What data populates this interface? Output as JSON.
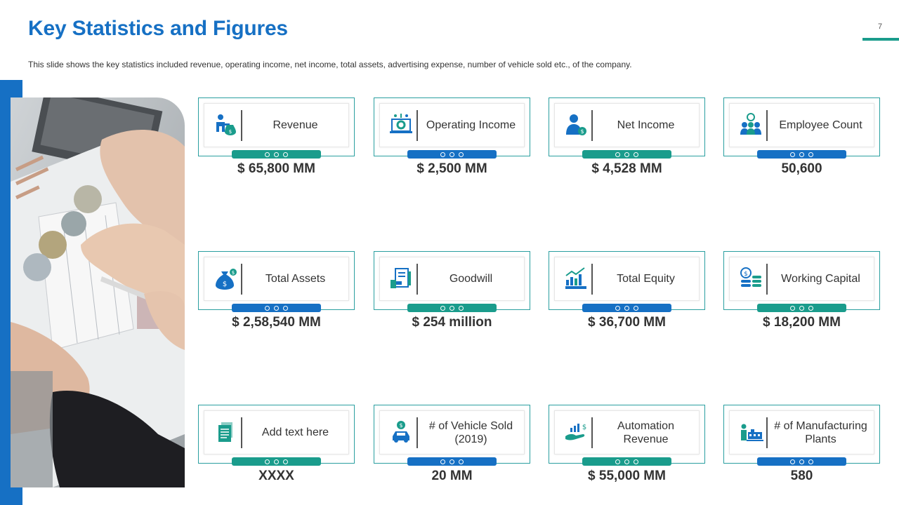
{
  "header": {
    "title": "Key Statistics and Figures",
    "page_number": "7",
    "subtitle": "This slide shows the key statistics included revenue,  operating income, net income, total assets, advertising  expense, number of vehicle  sold etc., of the company."
  },
  "colors": {
    "blue": "#1670c4",
    "teal": "#1a9c8c"
  },
  "cards": [
    {
      "label": "Revenue",
      "value": "$ 65,800 MM",
      "icon": "businessman-money-icon",
      "tab": "teal"
    },
    {
      "label": "Operating Income",
      "value": "$ 2,500 MM",
      "icon": "laptop-gear-icon",
      "tab": "blue"
    },
    {
      "label": "Net Income",
      "value": "$ 4,528 MM",
      "icon": "person-dollar-icon",
      "tab": "teal"
    },
    {
      "label": "Employee Count",
      "value": "50,600",
      "icon": "team-icon",
      "tab": "blue"
    },
    {
      "label": "Total Assets",
      "value": "$ 2,58,540 MM",
      "icon": "money-bag-icon",
      "tab": "blue"
    },
    {
      "label": "Goodwill",
      "value": "$ 254 million",
      "icon": "document-hand-icon",
      "tab": "teal"
    },
    {
      "label": "Total Equity",
      "value": "$ 36,700 MM",
      "icon": "growth-chart-icon",
      "tab": "blue"
    },
    {
      "label": "Working Capital",
      "value": "$ 18,200 MM",
      "icon": "coin-stack-icon",
      "tab": "teal"
    },
    {
      "label": "Add text here",
      "value": "XXXX",
      "icon": "documents-icon",
      "tab": "teal"
    },
    {
      "label": "# of Vehicle Sold (2019)",
      "value": "20 MM",
      "icon": "car-dollar-icon",
      "tab": "blue"
    },
    {
      "label": "Automation Revenue",
      "value": "$ 55,000 MM",
      "icon": "hand-chart-icon",
      "tab": "teal"
    },
    {
      "label": "# of Manufacturing Plants",
      "value": "580",
      "icon": "factory-worker-icon",
      "tab": "blue"
    }
  ]
}
